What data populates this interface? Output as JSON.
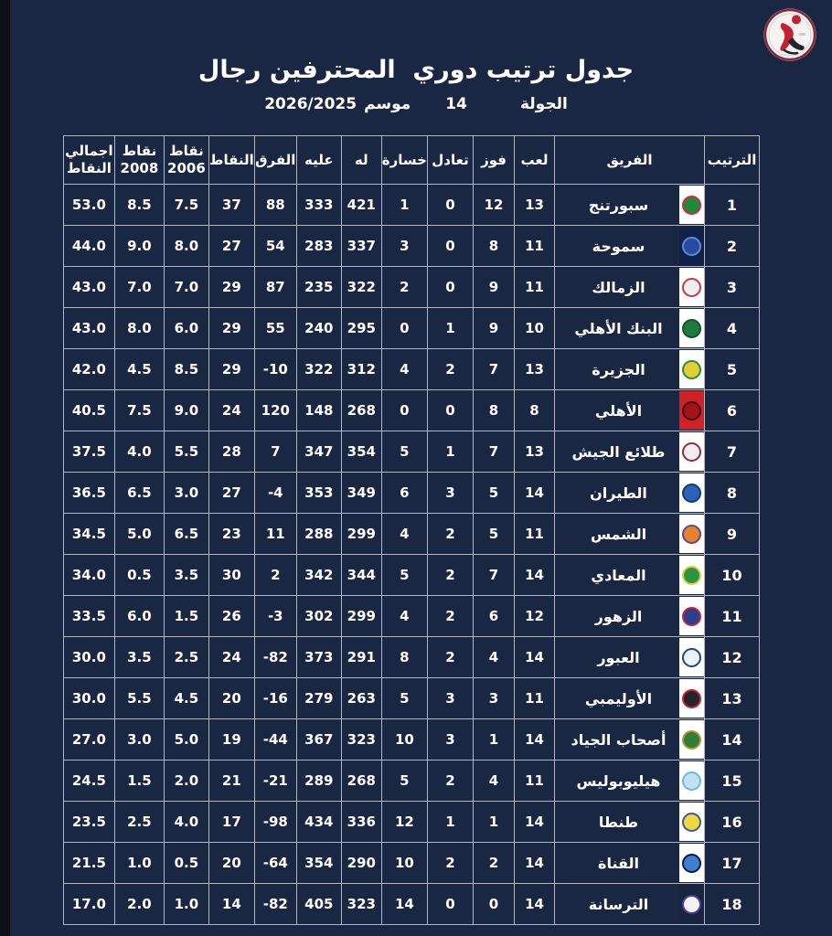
{
  "header": {
    "title": "جدول ترتيب دوري  المحترفين رجال",
    "round_label": "الجولة",
    "round_value": "14",
    "season_label": "موسم",
    "season_value": "2026/2025",
    "logo_name": "egyptian-handball-federation-logo"
  },
  "colors": {
    "background": "#1a2743",
    "edge_strip": "#0e1118",
    "grid_border": "#aeb6c4",
    "text": "#ffffff",
    "logo_ring_red": "#8c2433",
    "logo_figure_red": "#c22333",
    "logo_figure_dark": "#23252d"
  },
  "chart_data": {
    "type": "table",
    "title": "جدول ترتيب دوري  المحترفين رجال",
    "subtitle": "الجولة 14 موسم 2026/2025",
    "columns": [
      {
        "key": "rank",
        "label": "الترتيب"
      },
      {
        "key": "team",
        "label": "الفريق"
      },
      {
        "key": "played",
        "label": "لعب"
      },
      {
        "key": "win",
        "label": "فوز"
      },
      {
        "key": "draw",
        "label": "تعادل"
      },
      {
        "key": "loss",
        "label": "خسارة"
      },
      {
        "key": "for",
        "label": "له"
      },
      {
        "key": "against",
        "label": "عليه"
      },
      {
        "key": "diff",
        "label": "الفرق"
      },
      {
        "key": "points",
        "label": "النقاط"
      },
      {
        "key": "pts2006",
        "label": "نقاط\n2006"
      },
      {
        "key": "pts2008",
        "label": "نقاط\n2008"
      },
      {
        "key": "total",
        "label": "اجمالي\nالنقاط"
      }
    ],
    "rows": [
      {
        "rank": "1",
        "team": "سبورتنج",
        "played": "13",
        "win": "12",
        "draw": "0",
        "loss": "1",
        "for": "421",
        "against": "333",
        "diff": "88",
        "points": "37",
        "pts2006": "7.5",
        "pts2008": "8.5",
        "total": "53.0",
        "logo": {
          "bg": "#ffffff",
          "fill": "#1e8a3c",
          "ring": "#d7263d"
        }
      },
      {
        "rank": "2",
        "team": "سموحة",
        "played": "11",
        "win": "8",
        "draw": "0",
        "loss": "3",
        "for": "337",
        "against": "283",
        "diff": "54",
        "points": "27",
        "pts2006": "8.0",
        "pts2008": "9.0",
        "total": "44.0",
        "logo": {
          "bg": "#10214a",
          "fill": "#2a4aa0",
          "ring": "#5a8ae0"
        }
      },
      {
        "rank": "3",
        "team": "الزمالك",
        "played": "11",
        "win": "9",
        "draw": "0",
        "loss": "2",
        "for": "322",
        "against": "235",
        "diff": "87",
        "points": "29",
        "pts2006": "7.0",
        "pts2008": "7.0",
        "total": "43.0",
        "logo": {
          "bg": "#ffffff",
          "fill": "#efefef",
          "ring": "#c43a45"
        }
      },
      {
        "rank": "4",
        "team": "البنك الأهلي",
        "played": "10",
        "win": "9",
        "draw": "1",
        "loss": "0",
        "for": "295",
        "against": "240",
        "diff": "55",
        "points": "29",
        "pts2006": "6.0",
        "pts2008": "8.0",
        "total": "43.0",
        "logo": {
          "bg": "#ffffff",
          "fill": "#1f7a3d",
          "ring": "#145228"
        }
      },
      {
        "rank": "5",
        "team": "الجزيرة",
        "played": "13",
        "win": "7",
        "draw": "2",
        "loss": "4",
        "for": "312",
        "against": "322",
        "diff": "-10",
        "points": "29",
        "pts2006": "8.5",
        "pts2008": "4.5",
        "total": "42.0",
        "logo": {
          "bg": "#ffffff",
          "fill": "#e3cf35",
          "ring": "#2e8b3a"
        }
      },
      {
        "rank": "6",
        "team": "الأهلي",
        "played": "8",
        "win": "8",
        "draw": "0",
        "loss": "0",
        "for": "268",
        "against": "148",
        "diff": "120",
        "points": "24",
        "pts2006": "9.0",
        "pts2008": "7.5",
        "total": "40.5",
        "logo": {
          "bg": "#d22027",
          "fill": "#a31318",
          "ring": "#3a0d10"
        }
      },
      {
        "rank": "7",
        "team": "طلائع الجيش",
        "played": "13",
        "win": "7",
        "draw": "1",
        "loss": "5",
        "for": "354",
        "against": "347",
        "diff": "7",
        "points": "28",
        "pts2006": "5.5",
        "pts2008": "4.0",
        "total": "37.5",
        "logo": {
          "bg": "#ffffff",
          "fill": "#f3edf0",
          "ring": "#8c2f44"
        }
      },
      {
        "rank": "8",
        "team": "الطيران",
        "played": "14",
        "win": "5",
        "draw": "3",
        "loss": "6",
        "for": "349",
        "against": "353",
        "diff": "-4",
        "points": "27",
        "pts2006": "3.0",
        "pts2008": "6.5",
        "total": "36.5",
        "logo": {
          "bg": "#ffffff",
          "fill": "#2a63b8",
          "ring": "#163a6e"
        }
      },
      {
        "rank": "9",
        "team": "الشمس",
        "played": "11",
        "win": "5",
        "draw": "2",
        "loss": "4",
        "for": "299",
        "against": "288",
        "diff": "11",
        "points": "23",
        "pts2006": "6.5",
        "pts2008": "5.0",
        "total": "34.5",
        "logo": {
          "bg": "#ffffff",
          "fill": "#e8822a",
          "ring": "#5a4a8f"
        }
      },
      {
        "rank": "10",
        "team": "المعادي",
        "played": "14",
        "win": "7",
        "draw": "2",
        "loss": "5",
        "for": "344",
        "against": "342",
        "diff": "2",
        "points": "30",
        "pts2006": "3.5",
        "pts2008": "0.5",
        "total": "34.0",
        "logo": {
          "bg": "#ffffff",
          "fill": "#2f9441",
          "ring": "#dfcf3a"
        }
      },
      {
        "rank": "11",
        "team": "الزهور",
        "played": "12",
        "win": "6",
        "draw": "2",
        "loss": "4",
        "for": "299",
        "against": "302",
        "diff": "-3",
        "points": "26",
        "pts2006": "1.5",
        "pts2008": "6.0",
        "total": "33.5",
        "logo": {
          "bg": "#ffffff",
          "fill": "#2a3f8f",
          "ring": "#c42434"
        }
      },
      {
        "rank": "12",
        "team": "العبور",
        "played": "14",
        "win": "4",
        "draw": "2",
        "loss": "8",
        "for": "291",
        "against": "373",
        "diff": "-82",
        "points": "24",
        "pts2006": "2.5",
        "pts2008": "3.5",
        "total": "30.0",
        "logo": {
          "bg": "#ffffff",
          "fill": "#eef2f8",
          "ring": "#24418e"
        }
      },
      {
        "rank": "13",
        "team": "الأوليمبي",
        "played": "11",
        "win": "3",
        "draw": "3",
        "loss": "5",
        "for": "263",
        "against": "279",
        "diff": "-16",
        "points": "20",
        "pts2006": "4.5",
        "pts2008": "5.5",
        "total": "30.0",
        "logo": {
          "bg": "#ffffff",
          "fill": "#23252a",
          "ring": "#c42434"
        }
      },
      {
        "rank": "14",
        "team": "أصحاب الجياد",
        "played": "14",
        "win": "1",
        "draw": "3",
        "loss": "10",
        "for": "323",
        "against": "367",
        "diff": "-44",
        "points": "19",
        "pts2006": "5.0",
        "pts2008": "3.0",
        "total": "27.0",
        "logo": {
          "bg": "#ffffff",
          "fill": "#2f7d36",
          "ring": "#b8973a"
        }
      },
      {
        "rank": "15",
        "team": "هيليوبوليس",
        "played": "11",
        "win": "4",
        "draw": "2",
        "loss": "5",
        "for": "268",
        "against": "289",
        "diff": "-21",
        "points": "21",
        "pts2006": "2.0",
        "pts2008": "1.5",
        "total": "24.5",
        "logo": {
          "bg": "#ffffff",
          "fill": "#bfe3f4",
          "ring": "#6fb8dc"
        }
      },
      {
        "rank": "16",
        "team": "طنطا",
        "played": "14",
        "win": "1",
        "draw": "1",
        "loss": "12",
        "for": "336",
        "against": "434",
        "diff": "-98",
        "points": "17",
        "pts2006": "4.0",
        "pts2008": "2.5",
        "total": "23.5",
        "logo": {
          "bg": "#ffffff",
          "fill": "#f0d73e",
          "ring": "#3a5a9c"
        }
      },
      {
        "rank": "17",
        "team": "القناة",
        "played": "14",
        "win": "2",
        "draw": "2",
        "loss": "10",
        "for": "290",
        "against": "354",
        "diff": "-64",
        "points": "20",
        "pts2006": "0.5",
        "pts2008": "1.0",
        "total": "21.5",
        "logo": {
          "bg": "#ffffff",
          "fill": "#3f7fd1",
          "ring": "#121c38"
        }
      },
      {
        "rank": "18",
        "team": "الترسانة",
        "played": "14",
        "win": "0",
        "draw": "0",
        "loss": "14",
        "for": "323",
        "against": "405",
        "diff": "-82",
        "points": "14",
        "pts2006": "1.0",
        "pts2008": "2.0",
        "total": "17.0",
        "logo": {
          "bg": "#18253f",
          "fill": "#f2f2f6",
          "ring": "#4a3f9c"
        }
      }
    ]
  }
}
